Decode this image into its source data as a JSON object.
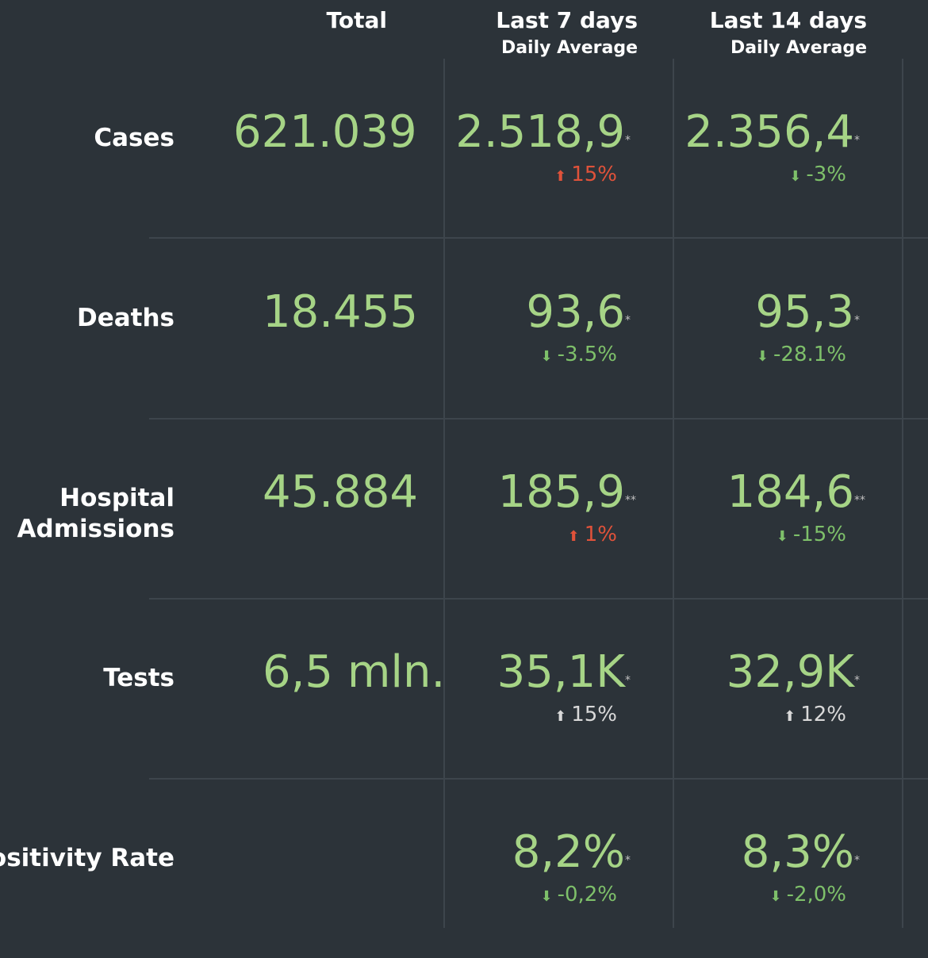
{
  "headers": {
    "total": "Total",
    "last7": "Last 7 days",
    "last7_sub": "Daily Average",
    "last14": "Last 14 days",
    "last14_sub": "Daily Average"
  },
  "rows": [
    {
      "label": "Cases",
      "total": "621.039",
      "last7": {
        "value": "2.518,9",
        "mark": "*",
        "change": "15%",
        "trend": "up",
        "color": "#e0523a"
      },
      "last14": {
        "value": "2.356,4",
        "mark": "*",
        "change": "-3%",
        "trend": "down",
        "color": "#7ec06a"
      }
    },
    {
      "label": "Deaths",
      "total": "18.455",
      "last7": {
        "value": "93,6",
        "mark": "*",
        "change": "-3.5%",
        "trend": "down",
        "color": "#7ec06a"
      },
      "last14": {
        "value": "95,3",
        "mark": "*",
        "change": "-28.1%",
        "trend": "down",
        "color": "#7ec06a"
      }
    },
    {
      "label_line1": "Hospital",
      "label_line2": "Admissions",
      "total": "45.884",
      "last7": {
        "value": "185,9",
        "mark": "**",
        "change": "1%",
        "trend": "up",
        "color": "#e0523a"
      },
      "last14": {
        "value": "184,6",
        "mark": "**",
        "change": "-15%",
        "trend": "down",
        "color": "#7ec06a"
      }
    },
    {
      "label": "Tests",
      "total": "6,5 mln.",
      "last7": {
        "value": "35,1K",
        "mark": "*",
        "change": "15%",
        "trend": "up",
        "color": "#d9d9d9"
      },
      "last14": {
        "value": "32,9K",
        "mark": "*",
        "change": "12%",
        "trend": "up",
        "color": "#d9d9d9"
      }
    },
    {
      "label": "Positivity Rate",
      "total": "",
      "last7": {
        "value": "8,2%",
        "mark": "*",
        "change": "-0,2%",
        "trend": "down",
        "color": "#7ec06a"
      },
      "last14": {
        "value": "8,3%",
        "mark": "*",
        "change": "-2,0%",
        "trend": "down",
        "color": "#7ec06a"
      }
    }
  ],
  "icons": {
    "up": "arrow-up-icon",
    "down": "arrow-down-icon"
  },
  "colors": {
    "background": "#2c3339",
    "value_green": "#a6d486",
    "up_red": "#e0523a",
    "down_green": "#7ec06a",
    "neutral": "#d9d9d9"
  }
}
